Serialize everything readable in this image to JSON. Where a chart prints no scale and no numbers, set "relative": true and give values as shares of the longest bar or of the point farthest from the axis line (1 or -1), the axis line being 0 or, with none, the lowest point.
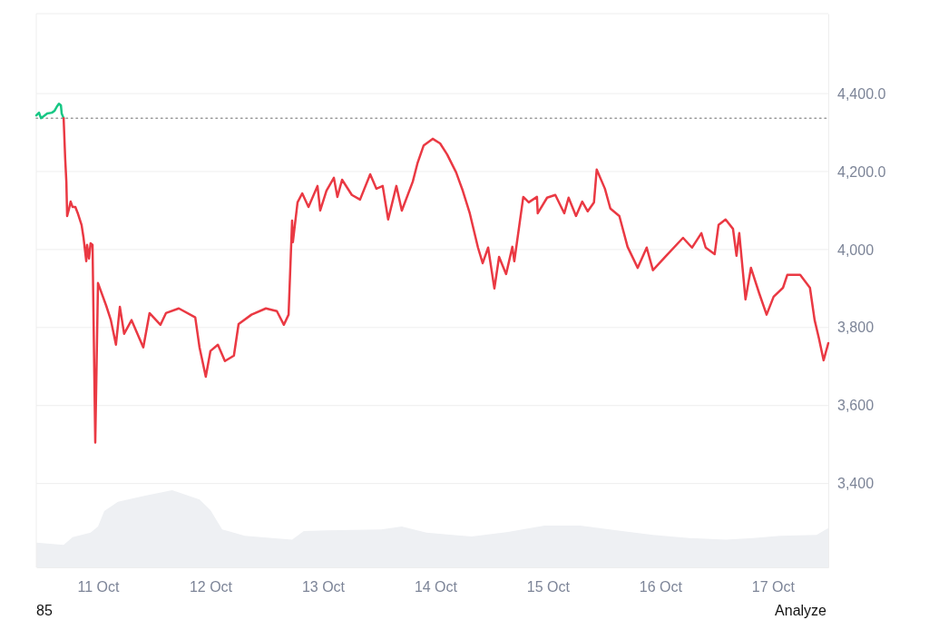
{
  "chart_data": [
    {
      "type": "line",
      "series": [
        {
          "color": "#16c784",
          "x": [
            "--10-10T10:50",
            "--10-10T11:25",
            "--10-10T11:50",
            "--10-10T12:25",
            "--10-10T13:10",
            "--10-10T14:10",
            "--10-10T14:45",
            "--10-10T15:15",
            "--10-10T15:40",
            "--10-10T16:05",
            "--10-10T16:15",
            "--10-10T16:40"
          ],
          "values": [
            4344,
            4351,
            4337,
            4342,
            4349,
            4351,
            4356,
            4367,
            4374,
            4370,
            4349,
            4337
          ]
        },
        {
          "color": "#ea3943",
          "x": [
            "--10-10T16:40",
            "--10-10T17:00",
            "--10-10T17:15",
            "--10-10T17:25",
            "--10-10T17:50",
            "--10-10T18:10",
            "--10-10T18:35",
            "--10-10T19:10",
            "--10-10T19:45",
            "--10-10T20:30",
            "--10-10T20:55",
            "--10-10T21:30",
            "--10-10T21:40",
            "--10-10T22:05",
            "--10-10T22:25",
            "--10-10T22:50",
            "--10-10T23:25",
            "--10-11T00:00",
            "--10-11T01:45",
            "--10-11T02:45",
            "--10-11T03:50",
            "--10-11T04:40",
            "--10-11T05:35",
            "--10-11T07:10",
            "--10-11T09:40",
            "--10-11T11:00",
            "--10-11T13:20",
            "--10-11T14:30",
            "--10-11T17:15",
            "--10-11T20:45",
            "--10-11T21:40",
            "--10-11T23:00",
            "--10-12T00:00",
            "--10-12T01:35",
            "--10-12T03:05",
            "--10-12T05:00",
            "--10-12T06:00",
            "--10-12T08:45",
            "--10-12T11:50",
            "--10-12T14:10",
            "--10-12T15:40",
            "--10-12T16:40",
            "--10-12T17:25",
            "--10-12T17:35",
            "--10-12T18:35",
            "--10-12T19:35",
            "--10-12T20:55",
            "--10-12T22:50",
            "--10-12T23:25",
            "--10-13T00:45",
            "--10-13T02:20",
            "--10-13T03:05",
            "--10-13T04:05",
            "--10-13T06:10",
            "--10-13T07:55",
            "--10-13T10:05",
            "--10-13T11:25",
            "--10-13T12:45",
            "--10-13T13:55",
            "--10-13T15:40",
            "--10-13T16:50",
            "--10-13T19:10",
            "--10-13T20:10",
            "--10-13T21:30",
            "--10-13T23:25",
            "--10-14T01:00",
            "--10-14T02:30",
            "--10-14T04:25",
            "--10-14T05:50",
            "--10-14T07:20",
            "--10-14T09:05",
            "--10-14T10:05",
            "--10-14T11:15",
            "--10-14T12:35",
            "--10-14T13:35",
            "--10-14T15:05",
            "--10-14T16:25",
            "--10-14T16:50",
            "--10-14T18:45",
            "--10-14T19:55",
            "--10-14T21:40",
            "--10-14T21:50",
            "--10-14T23:50",
            "--10-15T01:35",
            "--10-15T03:30",
            "--10-15T04:25",
            "--10-15T06:00",
            "--10-15T07:20",
            "--10-15T08:30",
            "--10-15T09:50",
            "--10-15T10:25",
            "--10-15T12:10",
            "--10-15T13:20",
            "--10-15T15:15",
            "--10-15T17:00",
            "--10-15T19:10",
            "--10-15T21:05",
            "--10-15T22:25",
            "--10-16T01:00",
            "--10-16T04:50",
            "--10-16T06:45",
            "--10-16T08:45",
            "--10-16T09:40",
            "--10-16T11:35",
            "--10-16T12:25",
            "--10-16T13:55",
            "--10-16T15:30",
            "--10-16T16:15",
            "--10-16T16:50",
            "--10-16T18:10",
            "--10-16T19:20",
            "--10-16T21:05",
            "--10-16T22:40",
            "--10-17T00:10",
            "--10-17T02:10",
            "--10-17T03:05",
            "--10-17T05:50",
            "--10-17T07:55",
            "--10-17T08:55",
            "--10-17T09:50",
            "--10-17T10:50",
            "--10-17T11:50"
          ],
          "values": [
            4337,
            4233,
            4174,
            4086,
            4105,
            4123,
            4109,
            4109,
            4091,
            4063,
            4030,
            3970,
            4012,
            3977,
            4016,
            4012,
            3505,
            3914,
            3856,
            3819,
            3756,
            3853,
            3784,
            3819,
            3749,
            3837,
            3807,
            3837,
            3849,
            3826,
            3749,
            3674,
            3740,
            3756,
            3714,
            3728,
            3809,
            3833,
            3849,
            3842,
            3807,
            3833,
            4074,
            4019,
            4121,
            4144,
            4109,
            4163,
            4100,
            4151,
            4184,
            4135,
            4179,
            4140,
            4128,
            4193,
            4156,
            4163,
            4077,
            4163,
            4100,
            4174,
            4221,
            4267,
            4284,
            4272,
            4244,
            4198,
            4151,
            4093,
            4005,
            3965,
            4005,
            3900,
            3981,
            3937,
            4007,
            3970,
            4135,
            4121,
            4135,
            4093,
            4133,
            4140,
            4093,
            4133,
            4086,
            4123,
            4098,
            4121,
            4205,
            4156,
            4105,
            4086,
            4007,
            3953,
            4005,
            3947,
            3981,
            4030,
            4005,
            4042,
            4005,
            3988,
            4063,
            4077,
            4053,
            3984,
            4042,
            3872,
            3953,
            3888,
            3833,
            3879,
            3902,
            3935,
            3935,
            3902,
            3819,
            3772,
            3716,
            3760
          ]
        }
      ],
      "xlim": [
        "--10-10T10:50",
        "--10-17T11:50"
      ],
      "xticks": [
        {
          "value": "--10-11",
          "label": "11 Oct"
        },
        {
          "value": "--10-12",
          "label": "12 Oct"
        },
        {
          "value": "--10-13",
          "label": "13 Oct"
        },
        {
          "value": "--10-14",
          "label": "14 Oct"
        },
        {
          "value": "--10-15",
          "label": "15 Oct"
        },
        {
          "value": "--10-16",
          "label": "16 Oct"
        },
        {
          "value": "--10-17",
          "label": "17 Oct"
        }
      ],
      "ylim": [
        3185,
        4605
      ],
      "yticks": [
        {
          "value": 3400,
          "label": "3,400"
        },
        {
          "value": 3600,
          "label": "3,600"
        },
        {
          "value": 3800,
          "label": "3,800"
        },
        {
          "value": 4000,
          "label": "4,000"
        },
        {
          "value": 4200,
          "label": "4,200.0"
        },
        {
          "value": 4400,
          "label": "4,400.0"
        }
      ],
      "grid": "y",
      "ref_lines": [
        {
          "axis": "y",
          "value": 4337,
          "line_style": "dotted",
          "color": "#999999"
        }
      ],
      "annotations": [
        "85",
        "Analyze"
      ]
    },
    {
      "type": "area",
      "relative": true,
      "xlim": [
        "--10-10T10:50",
        "--10-17T11:50"
      ],
      "series": [
        {
          "color": "#eef0f3",
          "x": [
            "--10-10T10:50",
            "--10-10T16:40",
            "--10-10T18:35",
            "--10-10T22:25",
            "--10-11T00:00",
            "--10-11T01:20",
            "--10-11T04:15",
            "--10-11T10:05",
            "--10-11T15:50",
            "--10-11T17:50",
            "--10-11T21:40",
            "--10-12T00:00",
            "--10-12T02:30",
            "--10-12T07:20",
            "--10-12T13:10",
            "--10-12T17:25",
            "--10-12T19:55",
            "--10-13T00:45",
            "--10-13T12:25",
            "--10-13T16:50",
            "--10-13T22:05",
            "--10-14T07:45",
            "--10-14T15:30",
            "--10-14T23:15",
            "--10-15T06:55",
            "--10-15T14:40",
            "--10-15T22:25",
            "--10-16T06:10",
            "--10-16T13:55",
            "--10-16T19:45",
            "--10-17T01:35",
            "--10-17T09:20",
            "--10-17T11:50"
          ],
          "values": [
            0.32,
            0.29,
            0.39,
            0.45,
            0.53,
            0.73,
            0.85,
            0.93,
            1,
            0.96,
            0.88,
            0.74,
            0.49,
            0.41,
            0.38,
            0.36,
            0.47,
            0.48,
            0.49,
            0.53,
            0.45,
            0.4,
            0.46,
            0.54,
            0.54,
            0.48,
            0.42,
            0.38,
            0.36,
            0.38,
            0.41,
            0.42,
            0.51
          ]
        }
      ]
    }
  ]
}
